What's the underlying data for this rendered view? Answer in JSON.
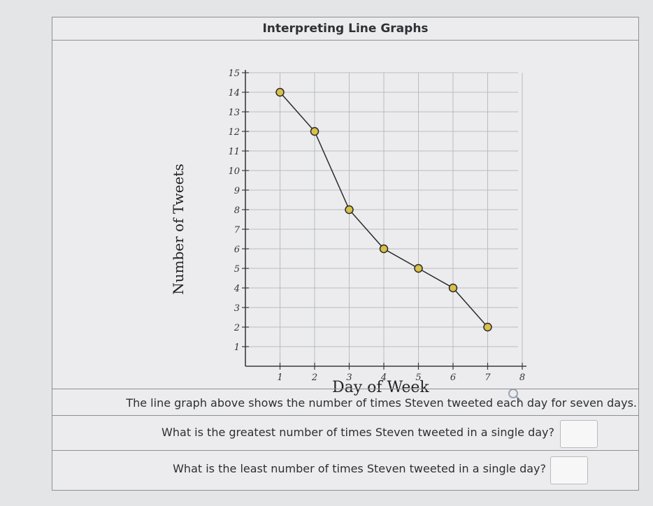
{
  "title": "Interpreting Line Graphs",
  "chart_data": {
    "type": "line",
    "xlabel": "Day of Week",
    "ylabel": "Number of Tweets",
    "x_ticks": [
      "1",
      "2",
      "3",
      "4",
      "5",
      "6",
      "7",
      "8"
    ],
    "y_ticks": [
      "1",
      "2",
      "3",
      "4",
      "5",
      "6",
      "7",
      "8",
      "9",
      "10",
      "11",
      "12",
      "13",
      "14",
      "15"
    ],
    "xlim": [
      0,
      8
    ],
    "ylim": [
      0,
      15
    ],
    "grid": true,
    "series": [
      {
        "x": [
          1,
          2,
          3,
          4,
          5,
          6,
          7
        ],
        "values": [
          14,
          12,
          8,
          6,
          5,
          4,
          2
        ]
      }
    ],
    "marker_color": "#d8c04a",
    "line_color": "#2a2a2a"
  },
  "description": "The line graph above shows the number of times Steven tweeted each day for seven days.",
  "questions": [
    {
      "text": "What is the greatest number of times Steven tweeted in a single day?",
      "answer": ""
    },
    {
      "text": "What is the least number of times Steven tweeted in a single day?",
      "answer": ""
    }
  ],
  "icons": {
    "zoom": "magnifier-icon"
  }
}
